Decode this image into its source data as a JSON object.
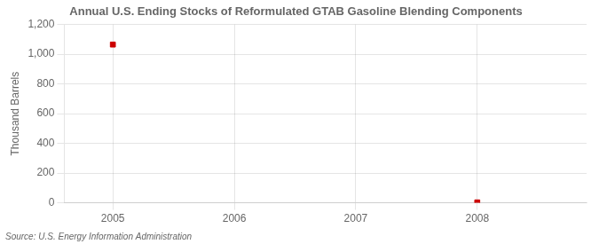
{
  "chart_data": {
    "type": "scatter",
    "title": "Annual U.S. Ending Stocks of Reformulated GTAB Gasoline Blending Components",
    "y_label": "Thousand Barrels",
    "annotations": [
      "Source: U.S. Energy Information Administration"
    ],
    "x": [
      2005,
      2008
    ],
    "values": [
      1065,
      3
    ],
    "color": "#cc0000",
    "marker": "square",
    "xlim": [
      2004.6,
      2008.9
    ],
    "xticks": [
      2005,
      2006,
      2007,
      2008
    ],
    "ylim": [
      0,
      1200
    ],
    "yticks": [
      0,
      200,
      400,
      600,
      800,
      {
        "value": 1000,
        "label": "1,000"
      },
      {
        "value": 1200,
        "label": "1,200"
      }
    ],
    "grid": true
  }
}
